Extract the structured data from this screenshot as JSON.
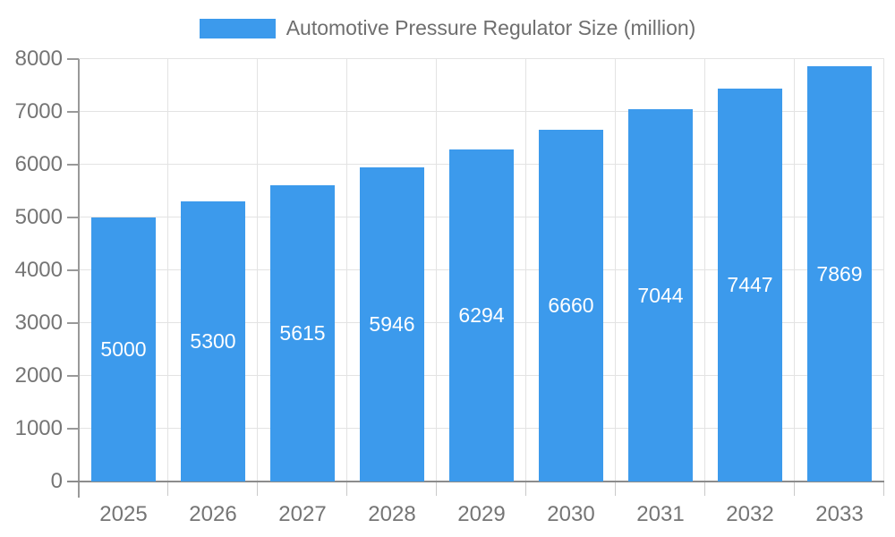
{
  "chart_data": {
    "type": "bar",
    "title": "Automotive Pressure Regulator Size (million)",
    "categories": [
      "2025",
      "2026",
      "2027",
      "2028",
      "2029",
      "2030",
      "2031",
      "2032",
      "2033"
    ],
    "series": [
      {
        "name": "Automotive Pressure Regulator Size (million)",
        "values": [
          5000,
          5300,
          5615,
          5946,
          6294,
          6660,
          7044,
          7447,
          7869
        ]
      }
    ],
    "xlabel": "",
    "ylabel": "",
    "ylim": [
      0,
      8000
    ],
    "ytick_step": 1000,
    "grid": true,
    "legend_position": "top",
    "colors": {
      "bar": "#3C9AEC",
      "value_label": "#ffffff",
      "axis_label": "#757575",
      "title": "#6e6e6e",
      "gridline": "#e3e3e3",
      "axis_line": "#999999",
      "baseline": "#8c8c8c"
    }
  }
}
